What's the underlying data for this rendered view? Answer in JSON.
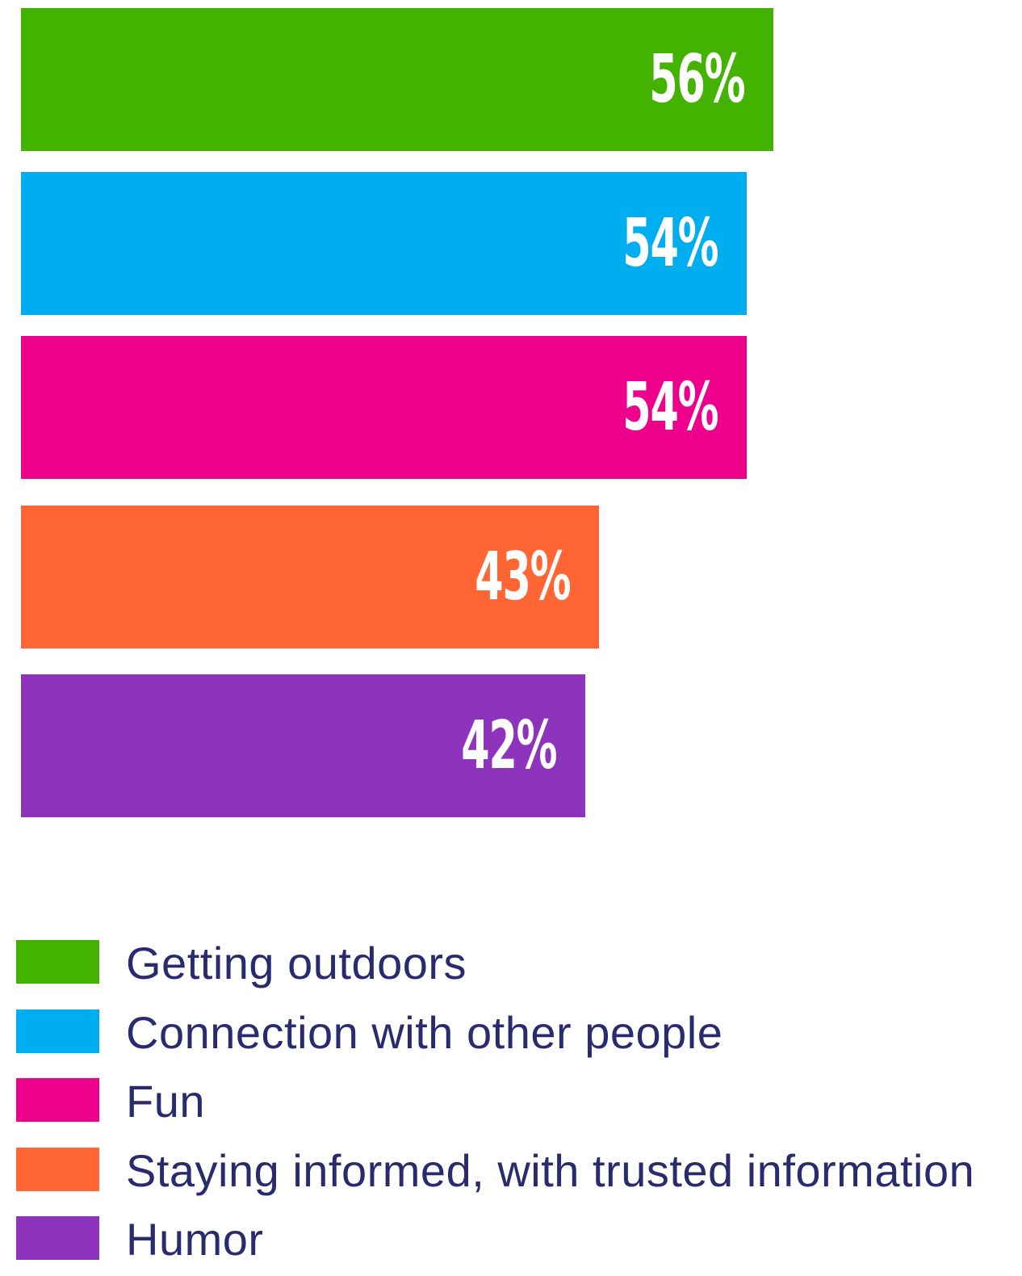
{
  "chart_data": {
    "type": "bar",
    "orientation": "horizontal",
    "categories": [
      "Getting outdoors",
      "Connection with other people",
      "Fun",
      "Staying informed, with trusted information",
      "Humor"
    ],
    "values": [
      56,
      54,
      54,
      43,
      42
    ],
    "value_labels": [
      "56%",
      "54%",
      "54%",
      "43%",
      "42%"
    ],
    "colors": [
      "#43b200",
      "#00aeef",
      "#ec008c",
      "#ff6633",
      "#8e33bc"
    ],
    "unit": "%",
    "grid": false,
    "legend_position": "bottom-left"
  },
  "legend_text_color": "#2a2a6e"
}
